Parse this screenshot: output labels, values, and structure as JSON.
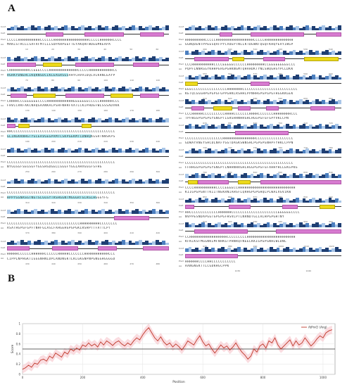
{
  "panel_a": {
    "label": "A",
    "row_labels": {
      "conf": "Conf",
      "cart": "Cart",
      "pred": "Pred",
      "aa": "AA"
    },
    "left_blocks": [
      {
        "pred": "CCCCCHHHHHHHHHHCCCCCCHHHHHHHHHHHHHHHHCCCCCHHHHHHCCCC",
        "aa": "MAKLSTRCLLSAFAFMTLLLSDPAHPEEFTEYAKQRFWDEEMKEAPA",
        "positions": [
          "10",
          "20",
          "30",
          "40",
          "50",
          "60"
        ],
        "helices": [
          [
            0.24,
            0.35
          ],
          [
            0.48,
            0.72
          ],
          [
            0.82,
            0.97
          ]
        ],
        "strands": []
      },
      {
        "pred": "CHHHHHHHHHCCEEECCCCHHHHHHHHHHHHHCCCCCHHHHHHHHHHHCC",
        "aa": "HGRKYDNEHCIKQRNSDCIKLEAGRSGSVHYCHVVIDQLVLKRNLEAYP",
        "positions": [
          "70",
          "80",
          "90",
          "100",
          "110",
          "120"
        ],
        "helices": [
          [
            0.0,
            0.18
          ],
          [
            0.42,
            0.66
          ],
          [
            0.78,
            0.94
          ]
        ],
        "strands": [
          [
            0.22,
            0.34
          ]
        ],
        "highlight": [
          0.0,
          0.38
        ]
      },
      {
        "pred": "CHHHHCCCEEEEEECCCCHHHHHHHHHHHHEEEEEEECCCCCHHHHHHCCC",
        "aa": "FHVLCRKFAKCNAQGAANKALPSHFNHRFVATLCKIPHDEFWLSSSADVKK",
        "positions": [
          "130",
          "140",
          "150",
          "160",
          "170",
          "180"
        ],
        "helices": [
          [
            0.02,
            0.12
          ],
          [
            0.36,
            0.6
          ],
          [
            0.82,
            0.94
          ]
        ],
        "strands": [
          [
            0.16,
            0.3
          ],
          [
            0.64,
            0.78
          ]
        ]
      },
      {
        "pred": "HHCCCCCCCCCCCCCCCCCCCCCCCCCCCCCCCCCCCCCCCCCCCCCCC",
        "aa": "GLINGKKNHGTYGCEAVGEGPAMTCSKPGEKMTCDNHQKGSRTNNSKPS",
        "positions": [
          "190",
          "200",
          "210",
          "220",
          "230",
          "240"
        ],
        "helices": [
          [
            0.0,
            0.05
          ]
        ],
        "strands": [
          [
            0.07,
            0.14
          ],
          [
            0.46,
            0.52
          ]
        ],
        "highlight": [
          0.0,
          0.52
        ]
      },
      {
        "pred": "CCCCCCCCCCCCCCCCCCCCCCCCCCCCCCCCCCCCCCCCCCCCCCCCC",
        "aa": "NYGGSGFSEGSGFYGGSHSDGELLGGGFYGGIAHVGGGFSFHG",
        "positions": [
          "250",
          "260",
          "270",
          "280",
          "290",
          "300"
        ],
        "helices": [],
        "strands": []
      },
      {
        "pred": "CCCCCCCCCCCCCCCCCCCCCCCCCCCCCCCCCCCCCCCCCCCCCCCCC",
        "aa": "HPPYGGNASGTNGTSLGGSYTRSHGGNTMGGGRTGLRGLHGGGYFG",
        "positions": [
          "310",
          "320",
          "330",
          "340",
          "350",
          "360"
        ],
        "helices": [],
        "strands": [],
        "highlight": [
          0.0,
          0.55
        ]
      },
      {
        "pred": "CCCCCCCCCCCCCCCCCCCCCCCCCCCCCCCCCHHHHHHHHHCCCCCCCC",
        "aa": "ASATHGPGFGPFTNHFGLASLFAHGEHGPGPGKLRSHPTTFATTLPT",
        "positions": [
          "370",
          "380",
          "390",
          "400",
          "410",
          "420"
        ],
        "helices": [
          [
            0.66,
            0.88
          ]
        ],
        "strands": []
      },
      {
        "pred": "HHHHHCCCCCCHHHHHHCCCCCCHHHHHCCCCCCCHHHHHHHHHHHCCC",
        "aa": "CIPPLNPHGKTIGGGNHNLDPLANDNGKTLKLGKGNPNPGNGGHGGGGD",
        "positions": [
          "430",
          "440",
          "450",
          "460",
          "470",
          "480"
        ],
        "helices": [
          [
            0.0,
            0.14
          ],
          [
            0.28,
            0.44
          ],
          [
            0.56,
            0.68
          ],
          [
            0.84,
            1.0
          ]
        ],
        "strands": []
      }
    ],
    "right_blocks": [
      {
        "pred": "HHHHHHHHHCCCCCHHHHHHHHHHHHHHHHHCCCCCHHHHHHHHHHHHH",
        "aa": "GGNQDENTPPEESQAFPYCVDEPTNLLKTDEWNTQGQFKHQYEAYIWGP",
        "positions": [
          "490",
          "500",
          "510",
          "520",
          "530",
          "540"
        ],
        "helices": [
          [
            0.22,
            0.3
          ],
          [
            0.42,
            0.76
          ],
          [
            0.84,
            1.0
          ]
        ],
        "strands": []
      },
      {
        "pred": "CCCHHHHHHHHHHCCCCEEEEECCCCCCHHHHHHHHCCEEEEEEEEECCC",
        "aa": "PQPFLNNRGGYKHHPERGPGHKNGMTQHAHDKTYNLSWQGHSYPCLDKK",
        "positions": [
          "550",
          "560",
          "570",
          "580",
          "590",
          "600"
        ],
        "helices": [
          [
            0.06,
            0.28
          ],
          [
            0.5,
            0.64
          ]
        ],
        "strands": [
          [
            0.3,
            0.38
          ],
          [
            0.76,
            0.98
          ]
        ]
      },
      {
        "pred": "EEECCCCCCCCCCCCCCCCHHHHHHHCCCCCCCCCCCCCCCCCCCCCCCCC",
        "aa": "KETQCGGGHPGPGPGFGPPGHKLRSHHLPPNHHGPGPGPGFHGGKKGEK",
        "positions": [
          "610",
          "620",
          "630",
          "640",
          "650",
          "660"
        ],
        "helices": [
          [
            0.42,
            0.54
          ]
        ],
        "strands": [
          [
            0.0,
            0.08
          ]
        ]
      },
      {
        "pred": "CCCHHHHHCCCCCCCCCCHHHHCCCCCCCHHHHCCCCCCCHHHHHHHHCCC",
        "aa": "TPFWGGPGPGPGYGNGPTLGRSHHNHRGHLHGGPGFGFGPYVKLCPN",
        "positions": [
          "670",
          "680",
          "690",
          "700",
          "710",
          "720"
        ],
        "helices": [
          [
            0.04,
            0.12
          ],
          [
            0.34,
            0.42
          ],
          [
            0.52,
            0.6
          ],
          [
            0.8,
            0.96
          ]
        ],
        "strands": [
          [
            0.18,
            0.3
          ]
        ]
      },
      {
        "pred": "CCCCCCCCCCCCCCCCCHHHHHHHHHHHHHHHCCCCCCCCCCCCCCCCC",
        "aa": "GDWAYANEYSHCDLNAFYGGTDAGKSWNSHLPGPGPGNHPFYHKLCPPN",
        "positions": [
          "730",
          "740",
          "750",
          "760",
          "770",
          "780"
        ],
        "helices": [
          [
            0.32,
            0.66
          ]
        ],
        "strands": []
      },
      {
        "pred": "CCCCCCCCCCCCCCCCCCCCCCCCCCCCCCCCCCCCCCCCCCCCCCCCC",
        "aa": "FFHHGGPGPGPGYGNGPTLNHHNHRGHLHGGPGPGFGFAHHYHLLEKGPKG",
        "positions": [
          "790",
          "800",
          "810",
          "820",
          "830",
          "840"
        ],
        "helices": [],
        "strands": []
      },
      {
        "pred": "CCCCHHHHHHHHHHCCCCEEEECCHHHHHHHHHHHHHHHHHHHHHHHHHH",
        "aa": "KIIGPGPGNTTKIITNEKRNIAHSFLQRHGPGPGHQLPLWALVGVIKW",
        "positions": [
          "850",
          "860",
          "870",
          "880",
          "890",
          "900"
        ],
        "helices": [
          [
            0.08,
            0.28
          ],
          [
            0.48,
            1.0
          ]
        ],
        "strands": [
          [
            0.02,
            0.08
          ],
          [
            0.34,
            0.42
          ]
        ]
      },
      {
        "pred": "HHCCCCCCCCCCCCCHHHHHHCCCCCCCCCCCCCCCCCCCCCEEEEEECCCC",
        "aa": "NVPPESNDAPGGTGPGPGFHSVLPTLNRNDTGLIALHPGPGHTNY",
        "positions": [
          "910",
          "920",
          "930",
          "940",
          "950",
          "960"
        ],
        "helices": [
          [
            0.0,
            0.06
          ],
          [
            0.28,
            0.42
          ],
          [
            0.62,
            0.72
          ]
        ],
        "strands": [
          [
            0.86,
            0.96
          ]
        ]
      },
      {
        "pred": "CCHHHHHHHHHHHHHHHHHCCCCCCCCCHHHHHHHHHHHHHHHHHHHHHH",
        "aa": "KFKLKSFMGGNKLMFNHKGTPHNRQFNEELKKIGPGPGNHLWLDNL",
        "positions": [
          "970",
          "980",
          "990",
          "1000",
          "1010",
          "1020"
        ],
        "helices": [
          [
            0.06,
            0.4
          ],
          [
            0.58,
            1.0
          ]
        ],
        "strands": []
      },
      {
        "pred": "HHHHHHCCCCHHCCCCCCCCCCC",
        "aa": "AANGNGKTTLCGDKHGCPPK",
        "positions": [
          "1030",
          "1040"
        ],
        "helices": [
          [
            0.0,
            0.34
          ]
        ],
        "strands": []
      }
    ]
  },
  "panel_b": {
    "label": "B",
    "chart_data": {
      "type": "line",
      "title": "",
      "xlabel": "Position",
      "ylabel": "Score",
      "legend": "AtPrxCl (Ang)",
      "legend_position": "top-right",
      "xlim": [
        0,
        1040
      ],
      "ylim": [
        0,
        1
      ],
      "threshold": 0.5,
      "x_ticks": [
        0,
        200,
        400,
        600,
        800,
        1000
      ],
      "y_ticks": [
        0,
        0.2,
        0.4,
        0.6,
        0.8,
        1
      ],
      "x_tick_labels": [
        "0",
        "200",
        "400",
        "600",
        "800",
        "1000"
      ],
      "y_tick_labels": [
        "0",
        "0.2",
        "0.4",
        "0.6",
        "0.8",
        "1"
      ],
      "series": [
        {
          "name": "AtPrxCl (Ang)",
          "x": [
            0,
            10,
            20,
            30,
            40,
            50,
            60,
            70,
            80,
            90,
            100,
            110,
            120,
            130,
            140,
            150,
            160,
            170,
            180,
            190,
            200,
            210,
            220,
            230,
            240,
            250,
            260,
            270,
            280,
            290,
            300,
            310,
            320,
            330,
            340,
            350,
            360,
            370,
            380,
            390,
            400,
            410,
            420,
            430,
            440,
            450,
            460,
            470,
            480,
            490,
            500,
            510,
            520,
            530,
            540,
            550,
            560,
            570,
            580,
            590,
            600,
            610,
            620,
            630,
            640,
            650,
            660,
            670,
            680,
            690,
            700,
            710,
            720,
            730,
            740,
            750,
            760,
            770,
            780,
            790,
            800,
            810,
            820,
            830,
            840,
            850,
            860,
            870,
            880,
            890,
            900,
            910,
            920,
            930,
            940,
            950,
            960,
            970,
            980,
            990,
            1000,
            1010,
            1020,
            1030
          ],
          "y": [
            0.1,
            0.13,
            0.18,
            0.14,
            0.22,
            0.2,
            0.28,
            0.3,
            0.26,
            0.36,
            0.32,
            0.42,
            0.38,
            0.34,
            0.44,
            0.4,
            0.5,
            0.46,
            0.52,
            0.48,
            0.58,
            0.55,
            0.62,
            0.56,
            0.6,
            0.54,
            0.64,
            0.58,
            0.66,
            0.62,
            0.57,
            0.63,
            0.66,
            0.6,
            0.56,
            0.62,
            0.58,
            0.66,
            0.72,
            0.68,
            0.78,
            0.86,
            0.92,
            0.82,
            0.72,
            0.66,
            0.74,
            0.64,
            0.58,
            0.62,
            0.54,
            0.6,
            0.55,
            0.48,
            0.56,
            0.66,
            0.62,
            0.58,
            0.68,
            0.76,
            0.64,
            0.56,
            0.6,
            0.5,
            0.42,
            0.5,
            0.58,
            0.52,
            0.56,
            0.48,
            0.54,
            0.62,
            0.52,
            0.44,
            0.38,
            0.3,
            0.36,
            0.5,
            0.44,
            0.56,
            0.6,
            0.52,
            0.66,
            0.62,
            0.72,
            0.58,
            0.5,
            0.56,
            0.62,
            0.68,
            0.56,
            0.66,
            0.58,
            0.62,
            0.72,
            0.64,
            0.56,
            0.62,
            0.7,
            0.76,
            0.72,
            0.82,
            0.86,
            0.88
          ]
        }
      ]
    }
  },
  "colors": {
    "helix": "#d77bd0",
    "strand": "#ecd91a",
    "line": "#c0392b",
    "band": "#f6c5cb",
    "threshold": "#333333",
    "conf_dark": "#1f3f73",
    "conf_mid": "#4c7fbf",
    "conf_light": "#a9c6e8",
    "aa_highlight": "#8fe3ec"
  }
}
